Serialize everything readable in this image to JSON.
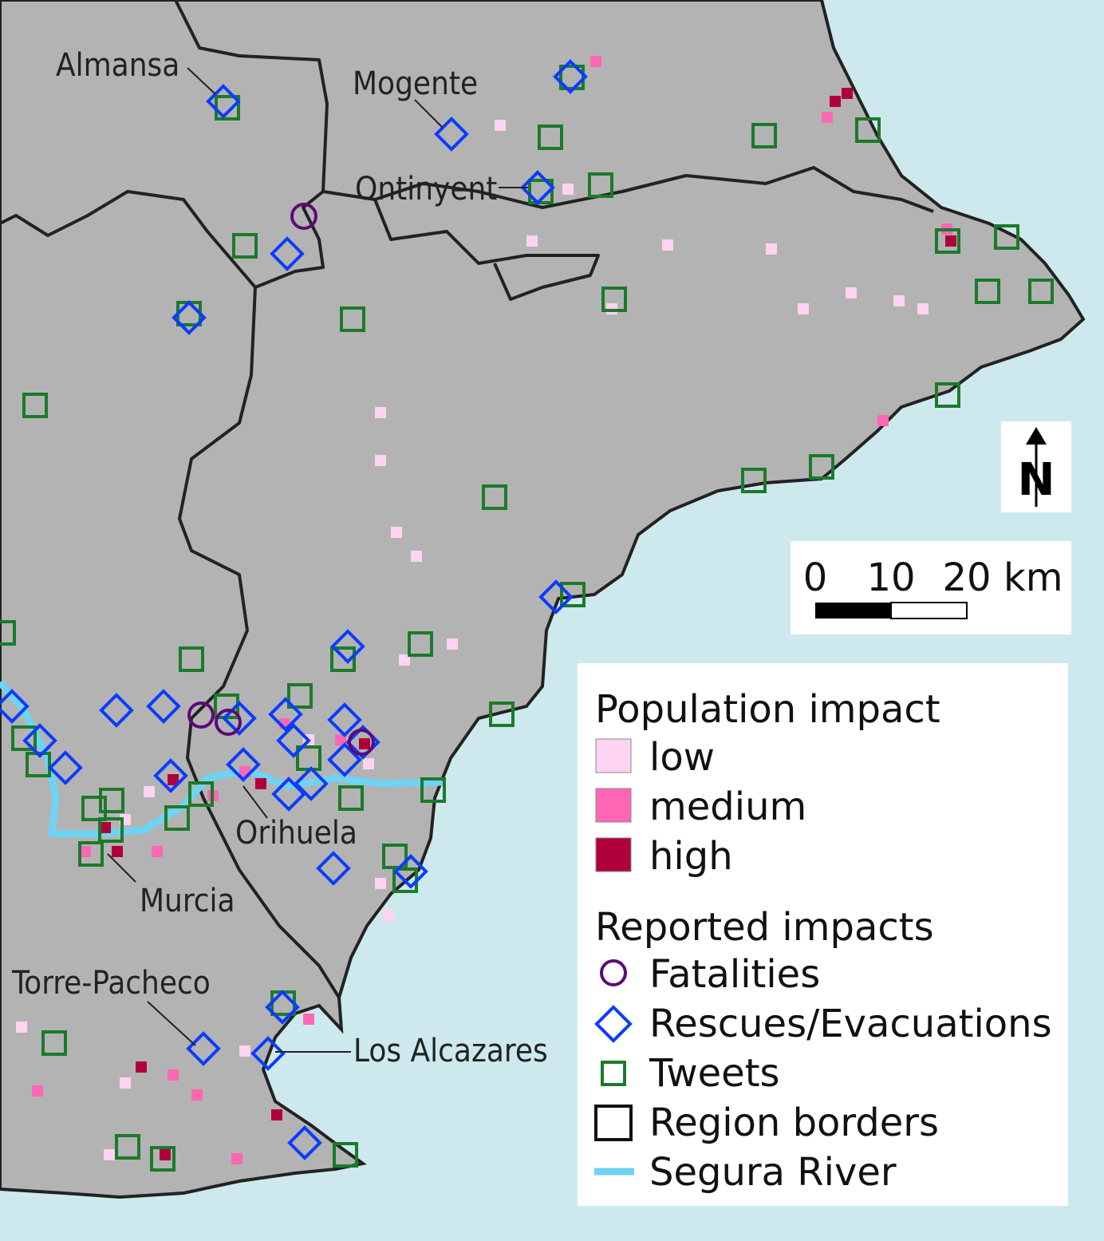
{
  "places": [
    {
      "label": "Almansa"
    },
    {
      "label": "Mogente"
    },
    {
      "label": "Ontinyent"
    },
    {
      "label": "Orihuela"
    },
    {
      "label": "Murcia"
    },
    {
      "label": "Torre-Pacheco"
    },
    {
      "label": "Los Alcazares"
    }
  ],
  "north_arrow": {
    "label": "N"
  },
  "scale_bar": {
    "ticks": [
      "0",
      "10",
      "20"
    ],
    "unit": "km"
  },
  "legend": {
    "population_title": "Population impact",
    "population": [
      "low",
      "medium",
      "high"
    ],
    "reported_title": "Reported impacts",
    "reported": [
      "Fatalities",
      "Rescues/Evacuations",
      "Tweets",
      "Region borders",
      "Segura River"
    ]
  }
}
